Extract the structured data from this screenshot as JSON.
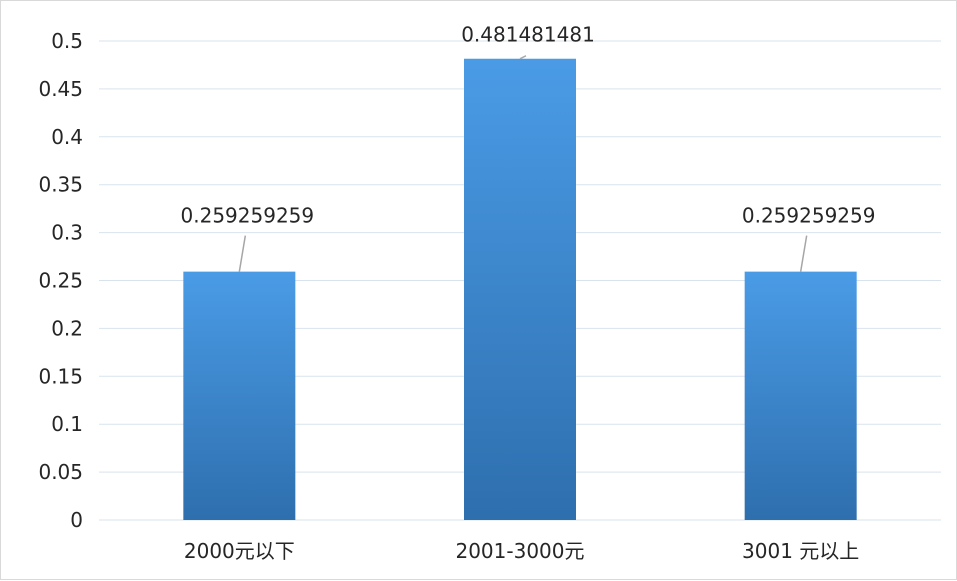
{
  "chart_data": {
    "type": "bar",
    "categories": [
      "2000元以下",
      "2001-3000元",
      "3001 元以上"
    ],
    "values": [
      0.259259259,
      0.481481481,
      0.259259259
    ],
    "data_labels": [
      "0.259259259",
      "0.481481481",
      "0.259259259"
    ],
    "yticks": [
      "0",
      "0.05",
      "0.1",
      "0.15",
      "0.2",
      "0.25",
      "0.3",
      "0.35",
      "0.4",
      "0.45",
      "0.5"
    ],
    "ylim": [
      0,
      0.5
    ],
    "grid": true,
    "legend": "none",
    "colors": {
      "bar_top": "#4A9BE6",
      "bar_bottom": "#2E6FAE",
      "grid": "#d9e3ee",
      "leader": "#a6a6a6"
    }
  }
}
